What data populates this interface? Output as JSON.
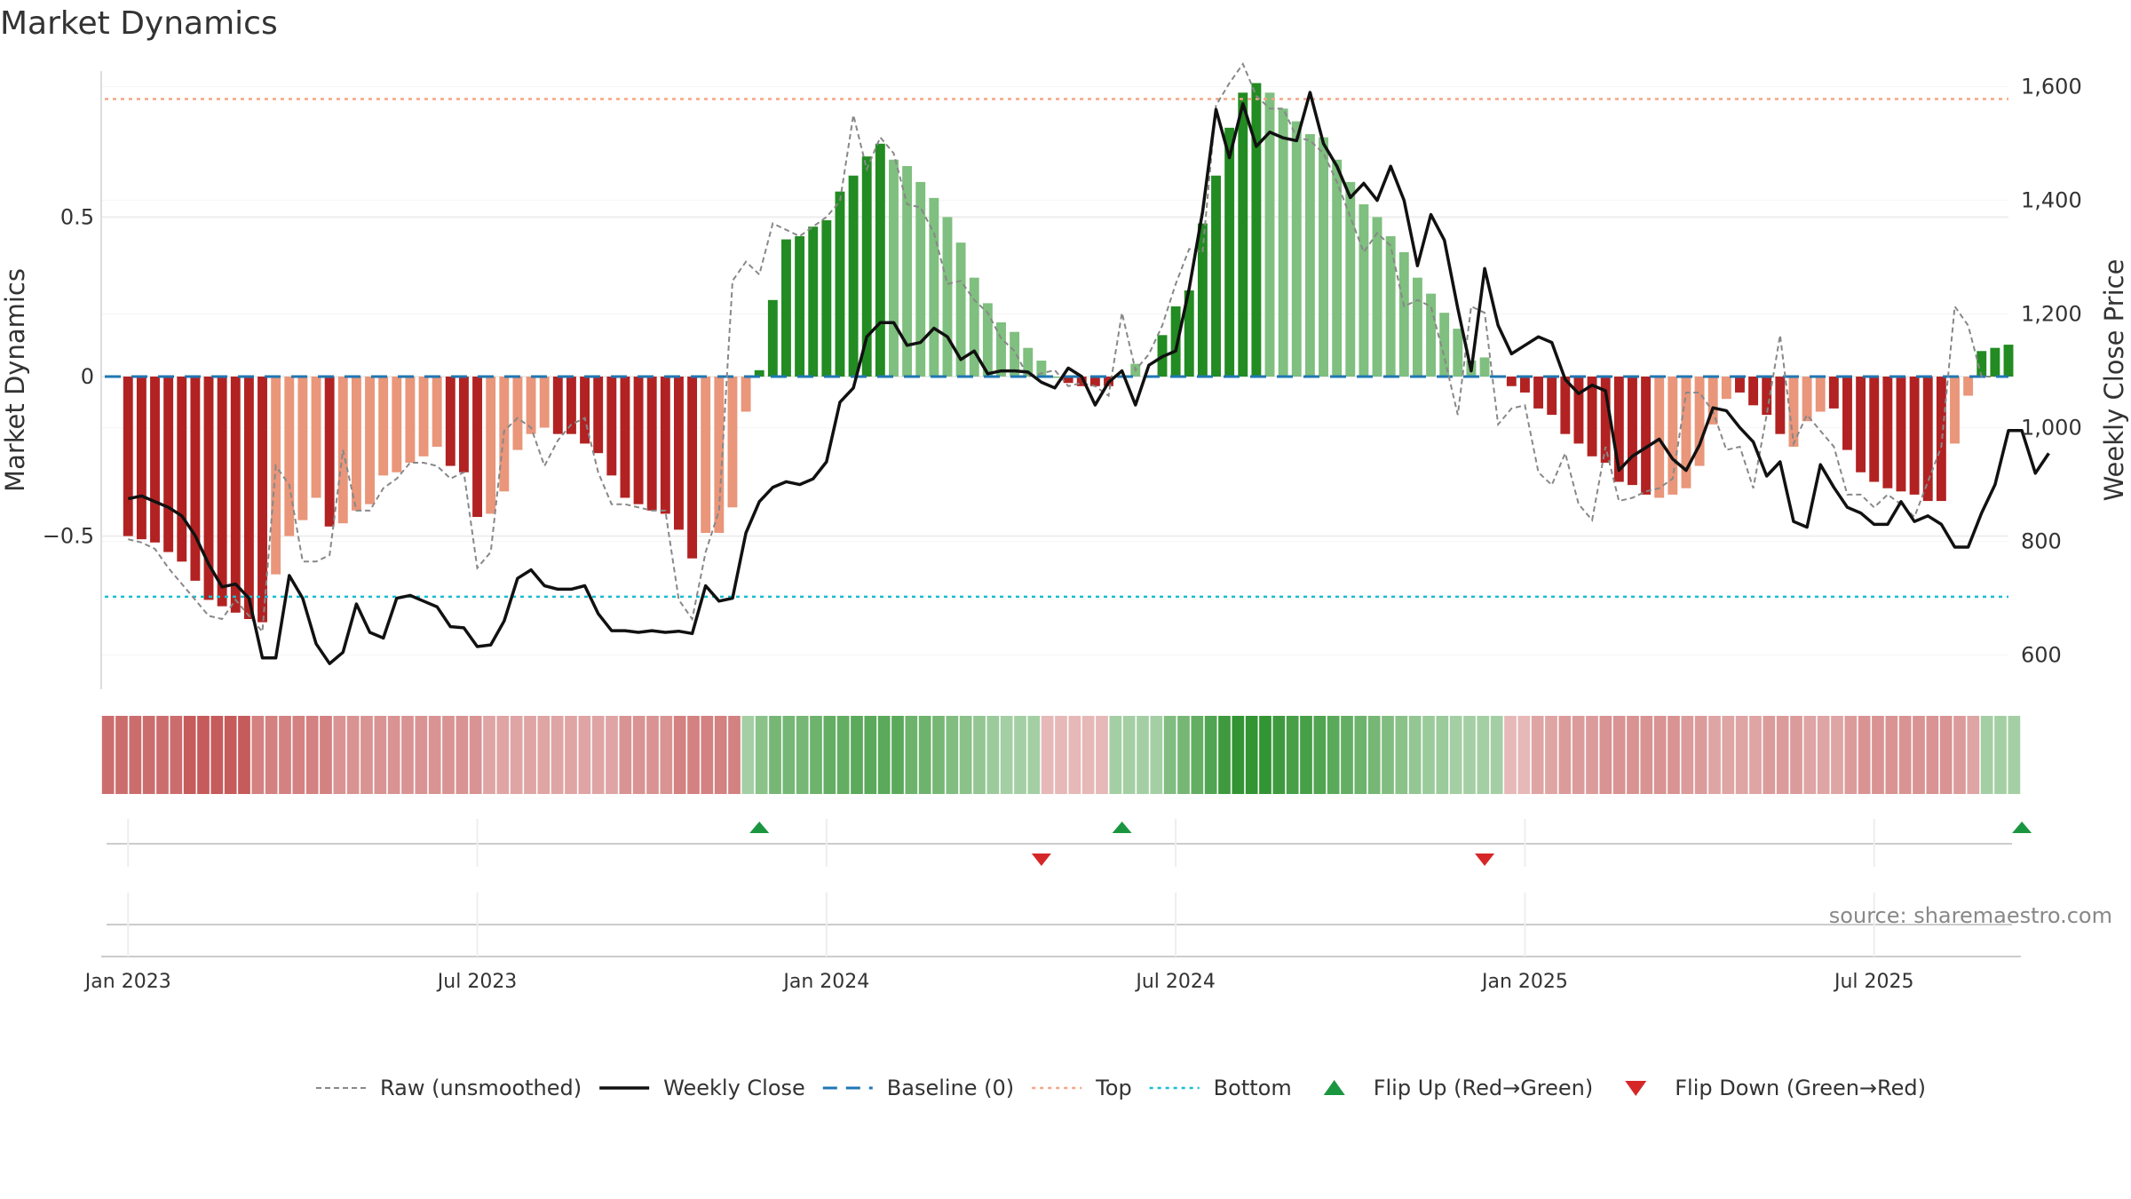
{
  "chart_data": {
    "type": "bar",
    "title": "Market Dynamics",
    "ylabel_left": "Market Dynamics",
    "ylabel_right": "Weekly Close Price",
    "source": "source: sharemaestro.com",
    "y_left_ticks": [
      "−0.5",
      "0",
      "0.5"
    ],
    "y_left_tick_values": [
      -0.5,
      0,
      0.5
    ],
    "y_right_ticks": [
      "600",
      "800",
      "1,000",
      "1,200",
      "1,400",
      "1,600"
    ],
    "y_right_tick_values": [
      600,
      800,
      1000,
      1200,
      1400,
      1600
    ],
    "ylim_left": [
      -0.98,
      0.98
    ],
    "ylim_right": [
      540,
      1640
    ],
    "x_ticks": [
      "Jan 2023",
      "Jul 2023",
      "Jan 2024",
      "Jul 2024",
      "Jan 2025",
      "Jul 2025"
    ],
    "x_tick_weeks": [
      0,
      26,
      52,
      78,
      104,
      130
    ],
    "x_range_weeks": [
      -2,
      140
    ],
    "top_level": 0.87,
    "bottom_level": -0.69,
    "baseline": 0,
    "colors": {
      "strong_green": "#228b22",
      "light_green": "#7fbf7f",
      "strong_red": "#b22222",
      "light_red": "#e9967a",
      "close_line": "#111111",
      "raw_line": "#888888",
      "baseline": "#1f77b4",
      "top": "#f4a582",
      "bottom": "#17becf",
      "flip_up": "#1a9641",
      "flip_down": "#d62728"
    },
    "series": [
      {
        "name": "Market Dynamics",
        "values": [
          -0.5,
          -0.51,
          -0.52,
          -0.55,
          -0.58,
          -0.64,
          -0.7,
          -0.72,
          -0.74,
          -0.76,
          -0.77,
          -0.62,
          -0.5,
          -0.45,
          -0.38,
          -0.47,
          -0.46,
          -0.42,
          -0.4,
          -0.31,
          -0.3,
          -0.27,
          -0.25,
          -0.22,
          -0.28,
          -0.3,
          -0.44,
          -0.43,
          -0.36,
          -0.23,
          -0.18,
          -0.16,
          -0.18,
          -0.18,
          -0.21,
          -0.24,
          -0.31,
          -0.38,
          -0.4,
          -0.42,
          -0.43,
          -0.48,
          -0.57,
          -0.49,
          -0.49,
          -0.41,
          -0.11,
          0.02,
          0.24,
          0.43,
          0.44,
          0.47,
          0.49,
          0.58,
          0.63,
          0.69,
          0.73,
          0.68,
          0.66,
          0.61,
          0.56,
          0.5,
          0.42,
          0.31,
          0.23,
          0.17,
          0.14,
          0.09,
          0.05,
          0.0,
          -0.02,
          -0.03,
          -0.03,
          -0.03,
          0.0,
          0.04,
          0.0,
          0.13,
          0.22,
          0.27,
          0.48,
          0.63,
          0.78,
          0.89,
          0.92,
          0.89,
          0.84,
          0.8,
          0.76,
          0.75,
          0.68,
          0.61,
          0.54,
          0.5,
          0.44,
          0.39,
          0.31,
          0.26,
          0.2,
          0.15,
          0.05,
          0.06,
          0.0,
          -0.03,
          -0.05,
          -0.1,
          -0.12,
          -0.18,
          -0.21,
          -0.25,
          -0.27,
          -0.33,
          -0.34,
          -0.37,
          -0.38,
          -0.37,
          -0.35,
          -0.28,
          -0.15,
          -0.07,
          -0.05,
          -0.09,
          -0.12,
          -0.18,
          -0.22,
          -0.14,
          -0.11,
          -0.1,
          -0.23,
          -0.3,
          -0.33,
          -0.35,
          -0.36,
          -0.37,
          -0.39,
          -0.39,
          -0.21,
          -0.06,
          0.08,
          0.09,
          0.1
        ],
        "strength": [
          1,
          1,
          1,
          1,
          1,
          1,
          1,
          1,
          1,
          1,
          1,
          0,
          0,
          0,
          0,
          1,
          0,
          0,
          0,
          0,
          0,
          0,
          0,
          0,
          1,
          1,
          1,
          0,
          0,
          0,
          0,
          0,
          1,
          1,
          1,
          1,
          1,
          1,
          1,
          1,
          1,
          1,
          1,
          0,
          0,
          0,
          0,
          1,
          1,
          1,
          1,
          1,
          1,
          1,
          1,
          1,
          1,
          0,
          0,
          0,
          0,
          0,
          0,
          0,
          0,
          0,
          0,
          0,
          0,
          0,
          1,
          1,
          1,
          1,
          0,
          0,
          0,
          1,
          1,
          1,
          1,
          1,
          1,
          1,
          1,
          0,
          0,
          0,
          0,
          0,
          0,
          0,
          0,
          0,
          0,
          0,
          0,
          0,
          0,
          0,
          0,
          0,
          0,
          1,
          1,
          1,
          1,
          1,
          1,
          1,
          1,
          1,
          1,
          1,
          0,
          0,
          0,
          0,
          0,
          0,
          1,
          1,
          1,
          1,
          0,
          0,
          0,
          1,
          1,
          1,
          1,
          1,
          1,
          1,
          1,
          1,
          0,
          0,
          1,
          1,
          1
        ]
      },
      {
        "name": "Raw (unsmoothed)",
        "values": [
          -0.51,
          -0.52,
          -0.54,
          -0.6,
          -0.65,
          -0.7,
          -0.75,
          -0.76,
          -0.7,
          -0.75,
          -0.8,
          -0.28,
          -0.34,
          -0.58,
          -0.58,
          -0.56,
          -0.23,
          -0.42,
          -0.42,
          -0.35,
          -0.32,
          -0.27,
          -0.27,
          -0.28,
          -0.32,
          -0.3,
          -0.6,
          -0.55,
          -0.17,
          -0.13,
          -0.16,
          -0.28,
          -0.2,
          -0.15,
          -0.13,
          -0.3,
          -0.4,
          -0.4,
          -0.41,
          -0.42,
          -0.42,
          -0.7,
          -0.76,
          -0.55,
          -0.42,
          0.3,
          0.36,
          0.32,
          0.48,
          0.46,
          0.44,
          0.47,
          0.5,
          0.55,
          0.82,
          0.65,
          0.75,
          0.7,
          0.54,
          0.53,
          0.45,
          0.29,
          0.3,
          0.24,
          0.2,
          0.12,
          0.08,
          0.0,
          0.01,
          0.02,
          -0.03,
          -0.02,
          -0.03,
          -0.06,
          0.2,
          0.02,
          0.07,
          0.16,
          0.29,
          0.4,
          0.39,
          0.85,
          0.92,
          0.98,
          0.88,
          0.84,
          0.84,
          0.75,
          0.74,
          0.7,
          0.61,
          0.5,
          0.39,
          0.45,
          0.41,
          0.22,
          0.24,
          0.22,
          0.06,
          -0.12,
          0.22,
          0.2,
          -0.15,
          -0.1,
          -0.09,
          -0.3,
          -0.34,
          -0.24,
          -0.4,
          -0.45,
          -0.22,
          -0.39,
          -0.38,
          -0.36,
          -0.35,
          -0.32,
          -0.05,
          -0.05,
          -0.11,
          -0.23,
          -0.22,
          -0.35,
          -0.12,
          0.13,
          -0.21,
          -0.12,
          -0.17,
          -0.22,
          -0.37,
          -0.37,
          -0.41,
          -0.37,
          -0.4,
          -0.44,
          -0.33,
          -0.22,
          0.22,
          0.16,
          0.0,
          0.0
        ]
      },
      {
        "name": "Weekly Close",
        "values": [
          875,
          880,
          870,
          860,
          845,
          810,
          760,
          720,
          725,
          700,
          595,
          595,
          740,
          700,
          620,
          585,
          605,
          690,
          640,
          630,
          700,
          705,
          695,
          685,
          650,
          648,
          615,
          618,
          660,
          735,
          750,
          722,
          716,
          716,
          722,
          673,
          643,
          643,
          640,
          643,
          640,
          642,
          638,
          722,
          695,
          700,
          815,
          870,
          895,
          905,
          900,
          910,
          940,
          1045,
          1070,
          1160,
          1185,
          1185,
          1145,
          1150,
          1175,
          1160,
          1120,
          1135,
          1095,
          1100,
          1100,
          1098,
          1080,
          1070,
          1105,
          1090,
          1040,
          1080,
          1100,
          1040,
          1110,
          1125,
          1135,
          1245,
          1380,
          1560,
          1475,
          1570,
          1495,
          1520,
          1510,
          1505,
          1590,
          1500,
          1460,
          1405,
          1430,
          1400,
          1460,
          1400,
          1285,
          1375,
          1330,
          1210,
          1100,
          1280,
          1180,
          1130,
          1145,
          1160,
          1150,
          1085,
          1060,
          1075,
          1065,
          925,
          950,
          965,
          980,
          945,
          925,
          970,
          1035,
          1030,
          1000,
          975,
          915,
          940,
          835,
          825,
          935,
          895,
          860,
          850,
          830,
          830,
          870,
          835,
          845,
          830,
          790,
          790,
          850,
          900,
          995,
          995,
          920,
          955
        ]
      }
    ],
    "regime": [
      -0.6,
      -0.6,
      -0.6,
      -0.6,
      -0.6,
      -0.6,
      -0.7,
      -0.7,
      -0.7,
      -0.7,
      -0.7,
      -0.5,
      -0.5,
      -0.5,
      -0.5,
      -0.5,
      -0.5,
      -0.4,
      -0.4,
      -0.4,
      -0.4,
      -0.4,
      -0.4,
      -0.4,
      -0.4,
      -0.4,
      -0.4,
      -0.4,
      -0.3,
      -0.3,
      -0.3,
      -0.3,
      -0.3,
      -0.3,
      -0.3,
      -0.3,
      -0.3,
      -0.3,
      -0.4,
      -0.4,
      -0.4,
      -0.4,
      -0.5,
      -0.5,
      -0.5,
      -0.5,
      -0.5,
      0.3,
      0.45,
      0.55,
      0.55,
      0.55,
      0.6,
      0.65,
      0.65,
      0.7,
      0.7,
      0.7,
      0.7,
      0.6,
      0.6,
      0.55,
      0.5,
      0.45,
      0.4,
      0.35,
      0.3,
      0.3,
      0.3,
      -0.2,
      -0.2,
      -0.2,
      -0.2,
      -0.2,
      0.3,
      0.3,
      0.3,
      0.3,
      0.5,
      0.55,
      0.65,
      0.75,
      0.85,
      0.9,
      0.9,
      0.9,
      0.85,
      0.8,
      0.8,
      0.75,
      0.7,
      0.65,
      0.6,
      0.55,
      0.5,
      0.45,
      0.4,
      0.35,
      0.35,
      0.3,
      0.3,
      0.3,
      0.3,
      -0.2,
      -0.2,
      -0.3,
      -0.3,
      -0.35,
      -0.35,
      -0.35,
      -0.4,
      -0.4,
      -0.4,
      -0.4,
      -0.4,
      -0.4,
      -0.35,
      -0.35,
      -0.3,
      -0.3,
      -0.3,
      -0.3,
      -0.35,
      -0.35,
      -0.35,
      -0.3,
      -0.3,
      -0.3,
      -0.35,
      -0.4,
      -0.4,
      -0.4,
      -0.4,
      -0.4,
      -0.4,
      -0.4,
      -0.35,
      -0.3,
      0.3,
      0.3,
      0.3
    ],
    "flip_up_weeks": [
      47,
      74,
      141
    ],
    "flip_down_weeks": [
      68,
      101
    ],
    "legend": [
      {
        "label": "Raw (unsmoothed)",
        "icon": "dashed-grey-line-icon"
      },
      {
        "label": "Weekly Close",
        "icon": "solid-black-line-icon"
      },
      {
        "label": "Baseline (0)",
        "icon": "dashed-blue-line-icon"
      },
      {
        "label": "Top",
        "icon": "dotted-orange-line-icon"
      },
      {
        "label": "Bottom",
        "icon": "dotted-cyan-line-icon"
      },
      {
        "label": "Flip Up (Red→Green)",
        "icon": "green-triangle-up-icon"
      },
      {
        "label": "Flip Down (Green→Red)",
        "icon": "red-triangle-down-icon"
      }
    ]
  }
}
